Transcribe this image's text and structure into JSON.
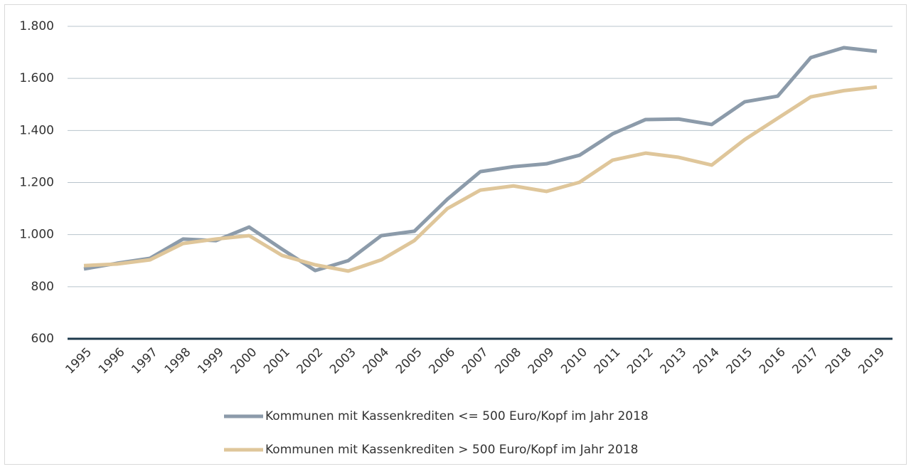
{
  "chart_data": {
    "type": "line",
    "categories": [
      "1995",
      "1996",
      "1997",
      "1998",
      "1999",
      "2000",
      "2001",
      "2002",
      "2003",
      "2004",
      "2005",
      "2006",
      "2007",
      "2008",
      "2009",
      "2010",
      "2011",
      "2012",
      "2013",
      "2014",
      "2015",
      "2016",
      "2017",
      "2018",
      "2019"
    ],
    "series": [
      {
        "name": "Kommunen mit Kassenkrediten <= 500 Euro/Kopf im Jahr 2018",
        "color": "#8c9baa",
        "values": [
          868,
          890,
          909,
          983,
          977,
          1029,
          944,
          862,
          900,
          996,
          1013,
          1136,
          1242,
          1261,
          1272,
          1305,
          1387,
          1442,
          1444,
          1423,
          1510,
          1532,
          1680,
          1718,
          1704
        ]
      },
      {
        "name": "Kommunen mit Kassenkrediten > 500 Euro/Kopf im Jahr 2018",
        "color": "#dfc69a",
        "values": [
          881,
          887,
          903,
          966,
          983,
          996,
          920,
          884,
          860,
          903,
          977,
          1100,
          1171,
          1187,
          1166,
          1201,
          1286,
          1313,
          1297,
          1267,
          1365,
          1447,
          1529,
          1553,
          1567
        ]
      }
    ],
    "ylim": [
      600,
      1800
    ],
    "yticks": [
      {
        "value": 600,
        "label": "600"
      },
      {
        "value": 800,
        "label": "800"
      },
      {
        "value": 1000,
        "label": "1.000"
      },
      {
        "value": 1200,
        "label": "1.200"
      },
      {
        "value": 1400,
        "label": "1.400"
      },
      {
        "value": 1600,
        "label": "1.600"
      },
      {
        "value": 1800,
        "label": "1.800"
      }
    ],
    "grid": true,
    "legend": "bottom"
  }
}
